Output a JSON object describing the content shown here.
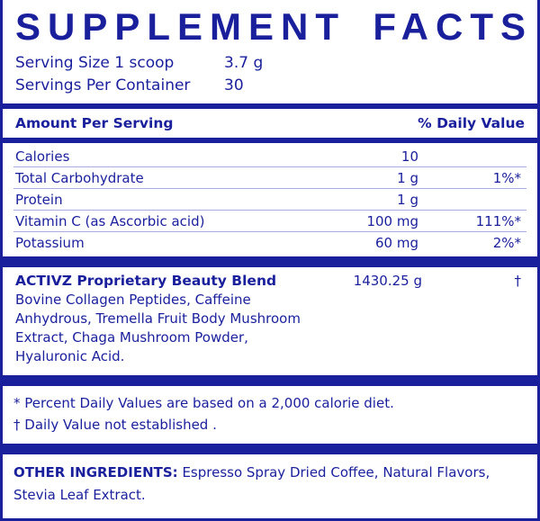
{
  "title": {
    "word1": "SUPPLEMENT",
    "word2": "FACTS"
  },
  "serving": {
    "size_label": "Serving Size 1 scoop",
    "size_value": "3.7 g",
    "per_container_label": "Servings Per Container",
    "per_container_value": "30"
  },
  "header": {
    "amount": "Amount Per Serving",
    "dv": "% Daily Value"
  },
  "nutrients": [
    {
      "name": "Calories",
      "amount": "10",
      "dv": ""
    },
    {
      "name": "Total Carbohydrate",
      "amount": "1 g",
      "dv": "1%*"
    },
    {
      "name": "Protein",
      "amount": "1 g",
      "dv": ""
    },
    {
      "name": "Vitamin C (as Ascorbic acid)",
      "amount": "100 mg",
      "dv": "111%*"
    },
    {
      "name": "Potassium",
      "amount": "60 mg",
      "dv": "2%*"
    }
  ],
  "blend": {
    "name": "ACTIVZ Proprietary Beauty Blend",
    "amount": "1430.25 g",
    "dv": "†",
    "ingredients": [
      "Bovine Collagen Peptides, Caffeine",
      "Anhydrous, Tremella Fruit Body Mushroom",
      "Extract, Chaga Mushroom Powder,",
      "Hyaluronic Acid."
    ]
  },
  "footnotes": [
    "* Percent Daily Values are based on a 2,000 calorie diet.",
    "† Daily Value not established ."
  ],
  "other": {
    "label": "OTHER INGREDIENTS:",
    "text": " Espresso Spray Dried Coffee, Natural Flavors, Stevia Leaf Extract."
  },
  "colors": {
    "brand": "#1a1f9c"
  }
}
